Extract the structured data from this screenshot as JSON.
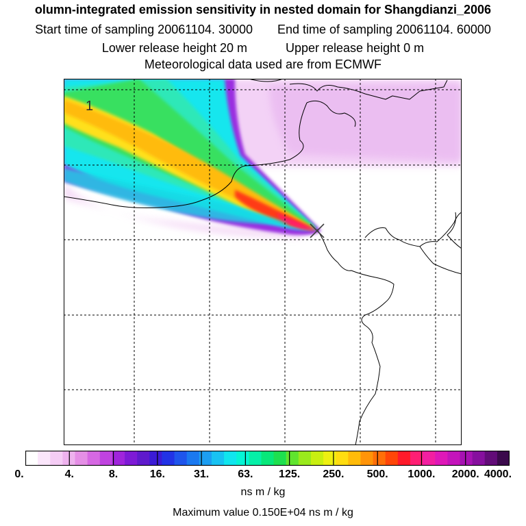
{
  "header": {
    "title": "olumn-integrated emission sensitivity in nested domain for Shangdianzi_2006",
    "start_sampling": "Start time of sampling 20061104. 30000",
    "end_sampling": "End time of sampling 20061104. 60000",
    "lower_release": "Lower release height   20 m",
    "upper_release": "Upper release height    0 m",
    "met_data": "Meteorological data used are from ECMWF"
  },
  "map": {
    "plume_label": "1",
    "receptor_icon": "x-marker-icon"
  },
  "legend": {
    "ticks": [
      "0.",
      "4.",
      "8.",
      "16.",
      "31.",
      "63.",
      "125.",
      "250.",
      "500.",
      "1000.",
      "2000.",
      "4000."
    ],
    "unit": "ns m / kg",
    "colors": [
      "#ffffff",
      "#fbe6fb",
      "#f5ccf5",
      "#eeb2ee",
      "#e58fe6",
      "#d668e3",
      "#c043e0",
      "#a024dc",
      "#7e1ad6",
      "#5f1acc",
      "#3b1bd6",
      "#2233e6",
      "#1f55ec",
      "#1b79f0",
      "#1c9ef2",
      "#18c2f2",
      "#10e6ee",
      "#05f5d5",
      "#06f0a8",
      "#08e87a",
      "#1ee04f",
      "#60e42e",
      "#9aea1c",
      "#c9ef10",
      "#eef011",
      "#ffdd10",
      "#ffbb0a",
      "#ff9408",
      "#ff6f08",
      "#ff4608",
      "#ff1a2a",
      "#ff1f74",
      "#f31fa1",
      "#df18b8",
      "#c414bb",
      "#a612b2",
      "#860f9e",
      "#620c78",
      "#3b0a4c"
    ]
  },
  "footer": {
    "max_value": "Maximum value  0.150E+04 ns m / kg"
  }
}
